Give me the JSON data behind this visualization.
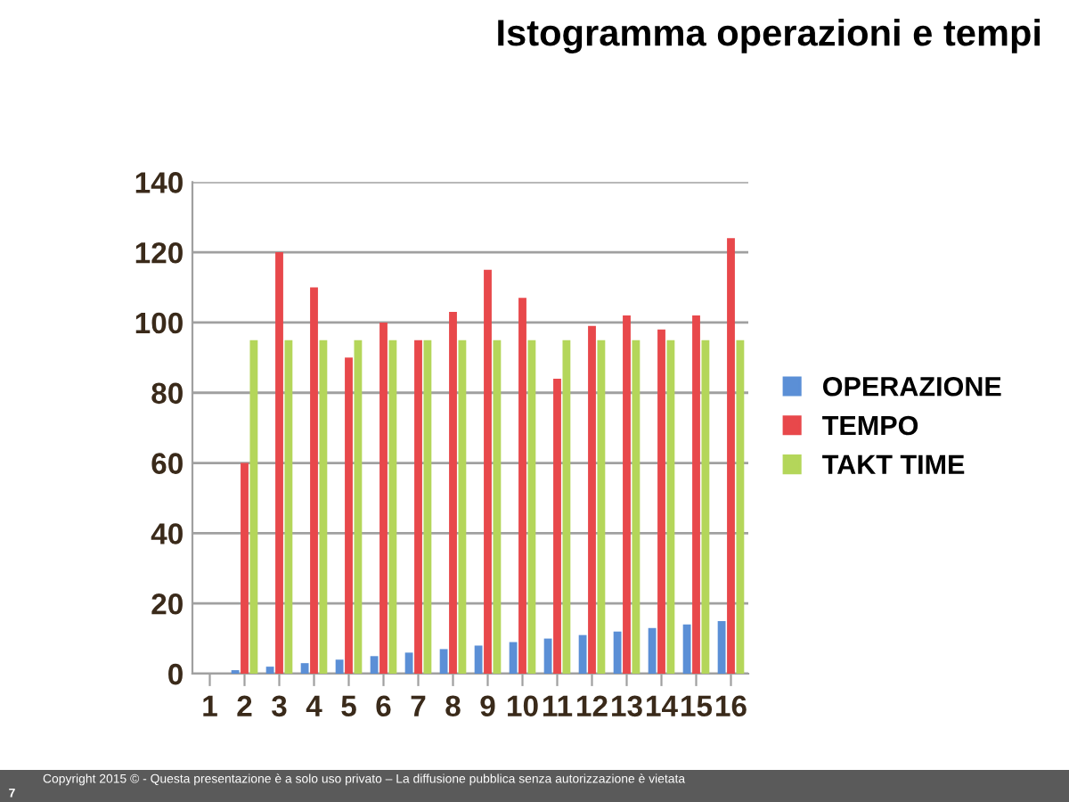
{
  "chart_data": {
    "type": "bar",
    "title": "Istogramma operazioni e tempi",
    "categories": [
      "1",
      "2",
      "3",
      "4",
      "5",
      "6",
      "7",
      "8",
      "9",
      "10",
      "11",
      "12",
      "13",
      "14",
      "15",
      "16"
    ],
    "series": [
      {
        "name": "OPERAZIONE",
        "color": "#5b8fd6",
        "values": [
          null,
          1,
          2,
          3,
          4,
          5,
          6,
          7,
          8,
          9,
          10,
          11,
          12,
          13,
          14,
          15
        ]
      },
      {
        "name": "TEMPO",
        "color": "#e8484b",
        "values": [
          null,
          60,
          120,
          110,
          90,
          100,
          95,
          103,
          115,
          107,
          84,
          99,
          102,
          98,
          102,
          124
        ]
      },
      {
        "name": "TAKT TIME",
        "color": "#b4d65a",
        "values": [
          null,
          95,
          95,
          95,
          95,
          95,
          95,
          95,
          95,
          95,
          95,
          95,
          95,
          95,
          95,
          95
        ]
      }
    ],
    "ylim": [
      0,
      140
    ],
    "yticks": [
      0,
      20,
      40,
      60,
      80,
      100,
      120,
      140
    ],
    "grid": "y",
    "legend": "right",
    "annotations": [
      "Copyright 2015 © - Questa presentazione è a solo uso privato – La diffusione pubblica senza autorizzazione è vietata",
      "7"
    ]
  }
}
